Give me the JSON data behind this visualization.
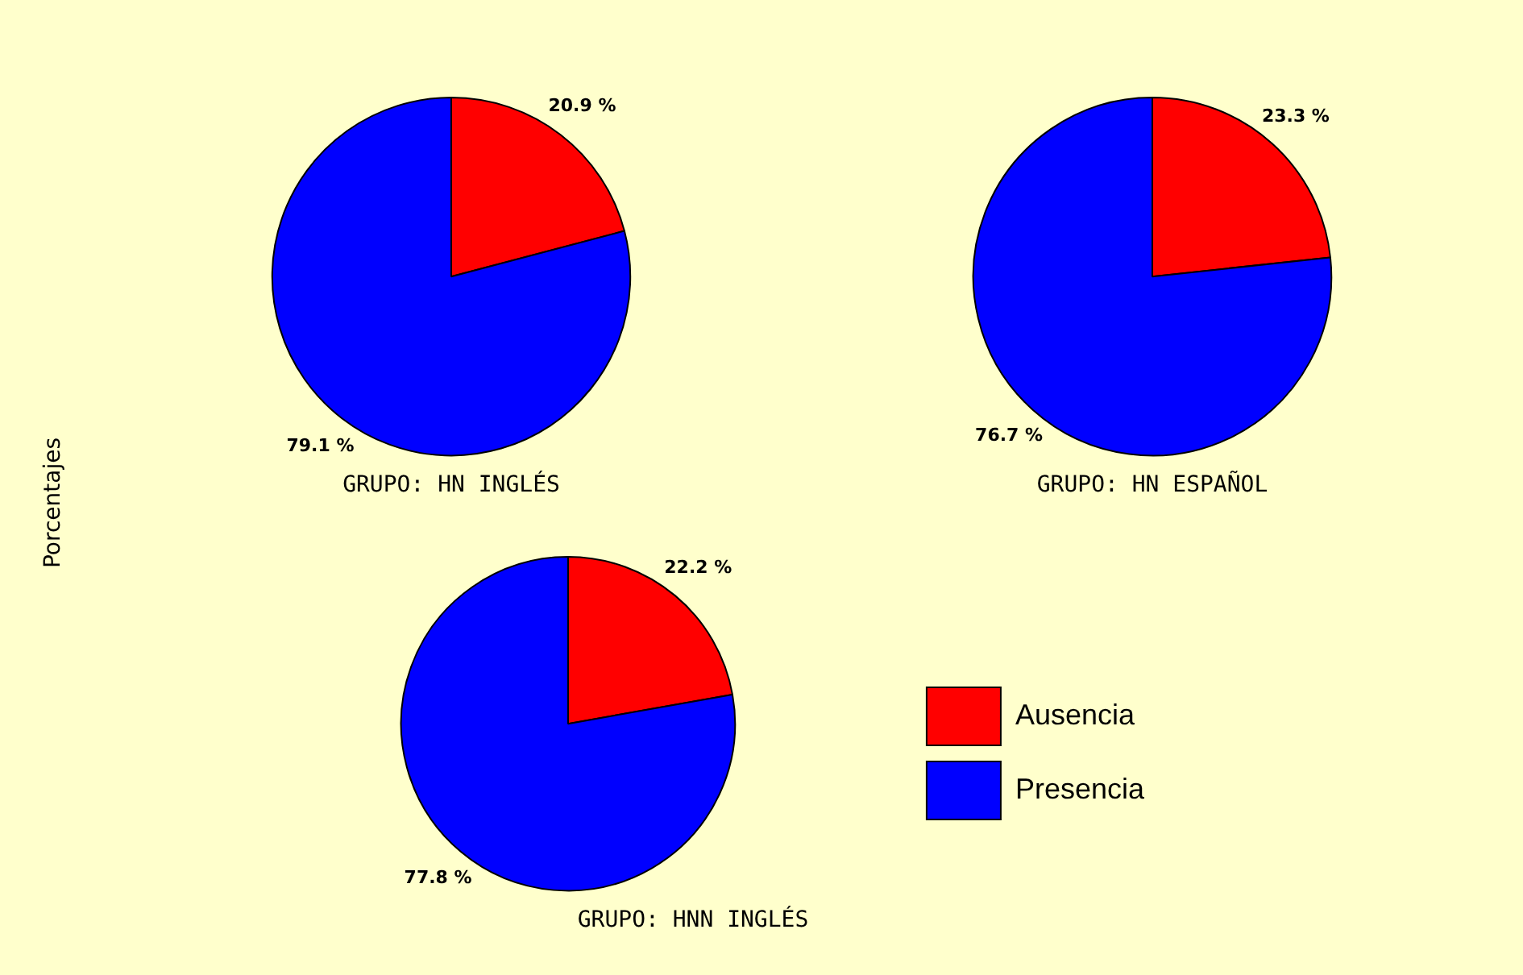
{
  "chart_data": [
    {
      "type": "pie",
      "title": "GRUPO: HN INGLÉS",
      "ylabel": "Porcentajes",
      "categories": [
        null,
        null
      ],
      "values": [
        20.9,
        79.1
      ],
      "colors": [
        "#ff0000",
        "#0000ff"
      ],
      "value_labels": [
        "20.9 %",
        "79.1 %"
      ]
    },
    {
      "type": "pie",
      "title": "GRUPO: HN ESPAÑOL",
      "categories": [
        null,
        null
      ],
      "values": [
        23.3,
        76.7
      ],
      "colors": [
        "#ff0000",
        "#0000ff"
      ],
      "value_labels": [
        "23.3 %",
        "76.7 %"
      ]
    },
    {
      "type": "pie",
      "title": "GRUPO: HNN INGLÉS",
      "categories": [
        "Ausencia",
        "Presencia"
      ],
      "values": [
        22.2,
        77.8
      ],
      "colors": [
        "#ff0000",
        "#0000ff"
      ],
      "value_labels": [
        "22.2 %",
        "77.8 %"
      ],
      "legend": "right"
    }
  ]
}
